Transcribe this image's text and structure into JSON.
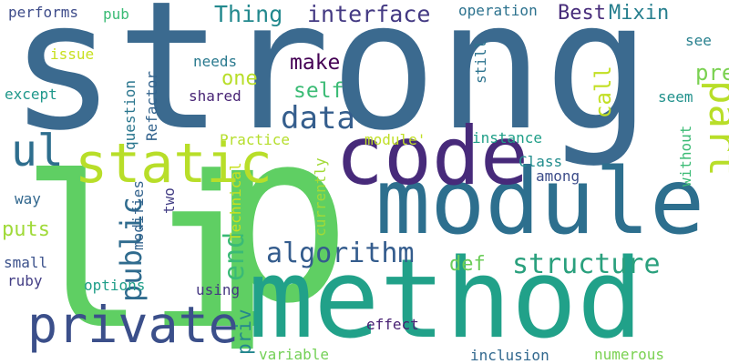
{
  "words": [
    {
      "text": "strong",
      "color": "#3b6a8f"
    },
    {
      "text": "li",
      "color": "#5fcf63"
    },
    {
      "text": "p",
      "color": "#5fcf63"
    },
    {
      "text": "method",
      "color": "#21a189"
    },
    {
      "text": "module",
      "color": "#2d6f8e"
    },
    {
      "text": "code",
      "color": "#472a7a"
    },
    {
      "text": "static",
      "color": "#b8de29"
    },
    {
      "text": "private",
      "color": "#3b4f8a"
    },
    {
      "text": "ul",
      "color": "#2e6e8e"
    },
    {
      "text": "part",
      "color": "#b8de29"
    },
    {
      "text": "algorithm",
      "color": "#345c8d"
    },
    {
      "text": "structure",
      "color": "#2aa07d"
    },
    {
      "text": "data",
      "color": "#355e8d"
    },
    {
      "text": "public",
      "color": "#2f6b8e"
    },
    {
      "text": "end",
      "color": "#3aba76"
    },
    {
      "text": "interface",
      "color": "#443a83"
    },
    {
      "text": "Thing",
      "color": "#23898e"
    },
    {
      "text": "Best",
      "color": "#472c7a"
    },
    {
      "text": "Mixin",
      "color": "#277f8e"
    },
    {
      "text": "make",
      "color": "#440154"
    },
    {
      "text": "self",
      "color": "#3bbb75"
    },
    {
      "text": "one",
      "color": "#b8de29"
    },
    {
      "text": "pre",
      "color": "#7ad151"
    },
    {
      "text": "call",
      "color": "#c2df23"
    },
    {
      "text": "def",
      "color": "#6ccd5a"
    },
    {
      "text": "puts",
      "color": "#a0da39"
    },
    {
      "text": "priv",
      "color": "#24878e"
    },
    {
      "text": "performs",
      "color": "#3e4c8a"
    },
    {
      "text": "pub",
      "color": "#3bbb75"
    },
    {
      "text": "operation",
      "color": "#2c728e"
    },
    {
      "text": "issue",
      "color": "#c8e020"
    },
    {
      "text": "needs",
      "color": "#29798e"
    },
    {
      "text": "still",
      "color": "#2c738e"
    },
    {
      "text": "see",
      "color": "#27808e"
    },
    {
      "text": "except",
      "color": "#1f988b"
    },
    {
      "text": "question",
      "color": "#2a768e"
    },
    {
      "text": "Refactor",
      "color": "#33638d"
    },
    {
      "text": "shared",
      "color": "#482475"
    },
    {
      "text": "seem",
      "color": "#21918c"
    },
    {
      "text": "Practice",
      "color": "#b5de2b"
    },
    {
      "text": "module'",
      "color": "#c0df25"
    },
    {
      "text": "instance",
      "color": "#1f9f88"
    },
    {
      "text": "Class",
      "color": "#228d8d"
    },
    {
      "text": "among",
      "color": "#3d4d8a"
    },
    {
      "text": "without",
      "color": "#3bbb75"
    },
    {
      "text": "currently",
      "color": "#a2da37"
    },
    {
      "text": "Technical",
      "color": "#c8e020"
    },
    {
      "text": "modifies",
      "color": "#33638d"
    },
    {
      "text": "two",
      "color": "#433e85"
    },
    {
      "text": "way",
      "color": "#31678e"
    },
    {
      "text": "small",
      "color": "#3b518b"
    },
    {
      "text": "ruby",
      "color": "#433e85"
    },
    {
      "text": "options",
      "color": "#1f9e89"
    },
    {
      "text": "using",
      "color": "#453781"
    },
    {
      "text": "effect",
      "color": "#482173"
    },
    {
      "text": "variable",
      "color": "#73d056"
    },
    {
      "text": "inclusion",
      "color": "#31688e"
    },
    {
      "text": "numerous",
      "color": "#7ad151"
    }
  ]
}
